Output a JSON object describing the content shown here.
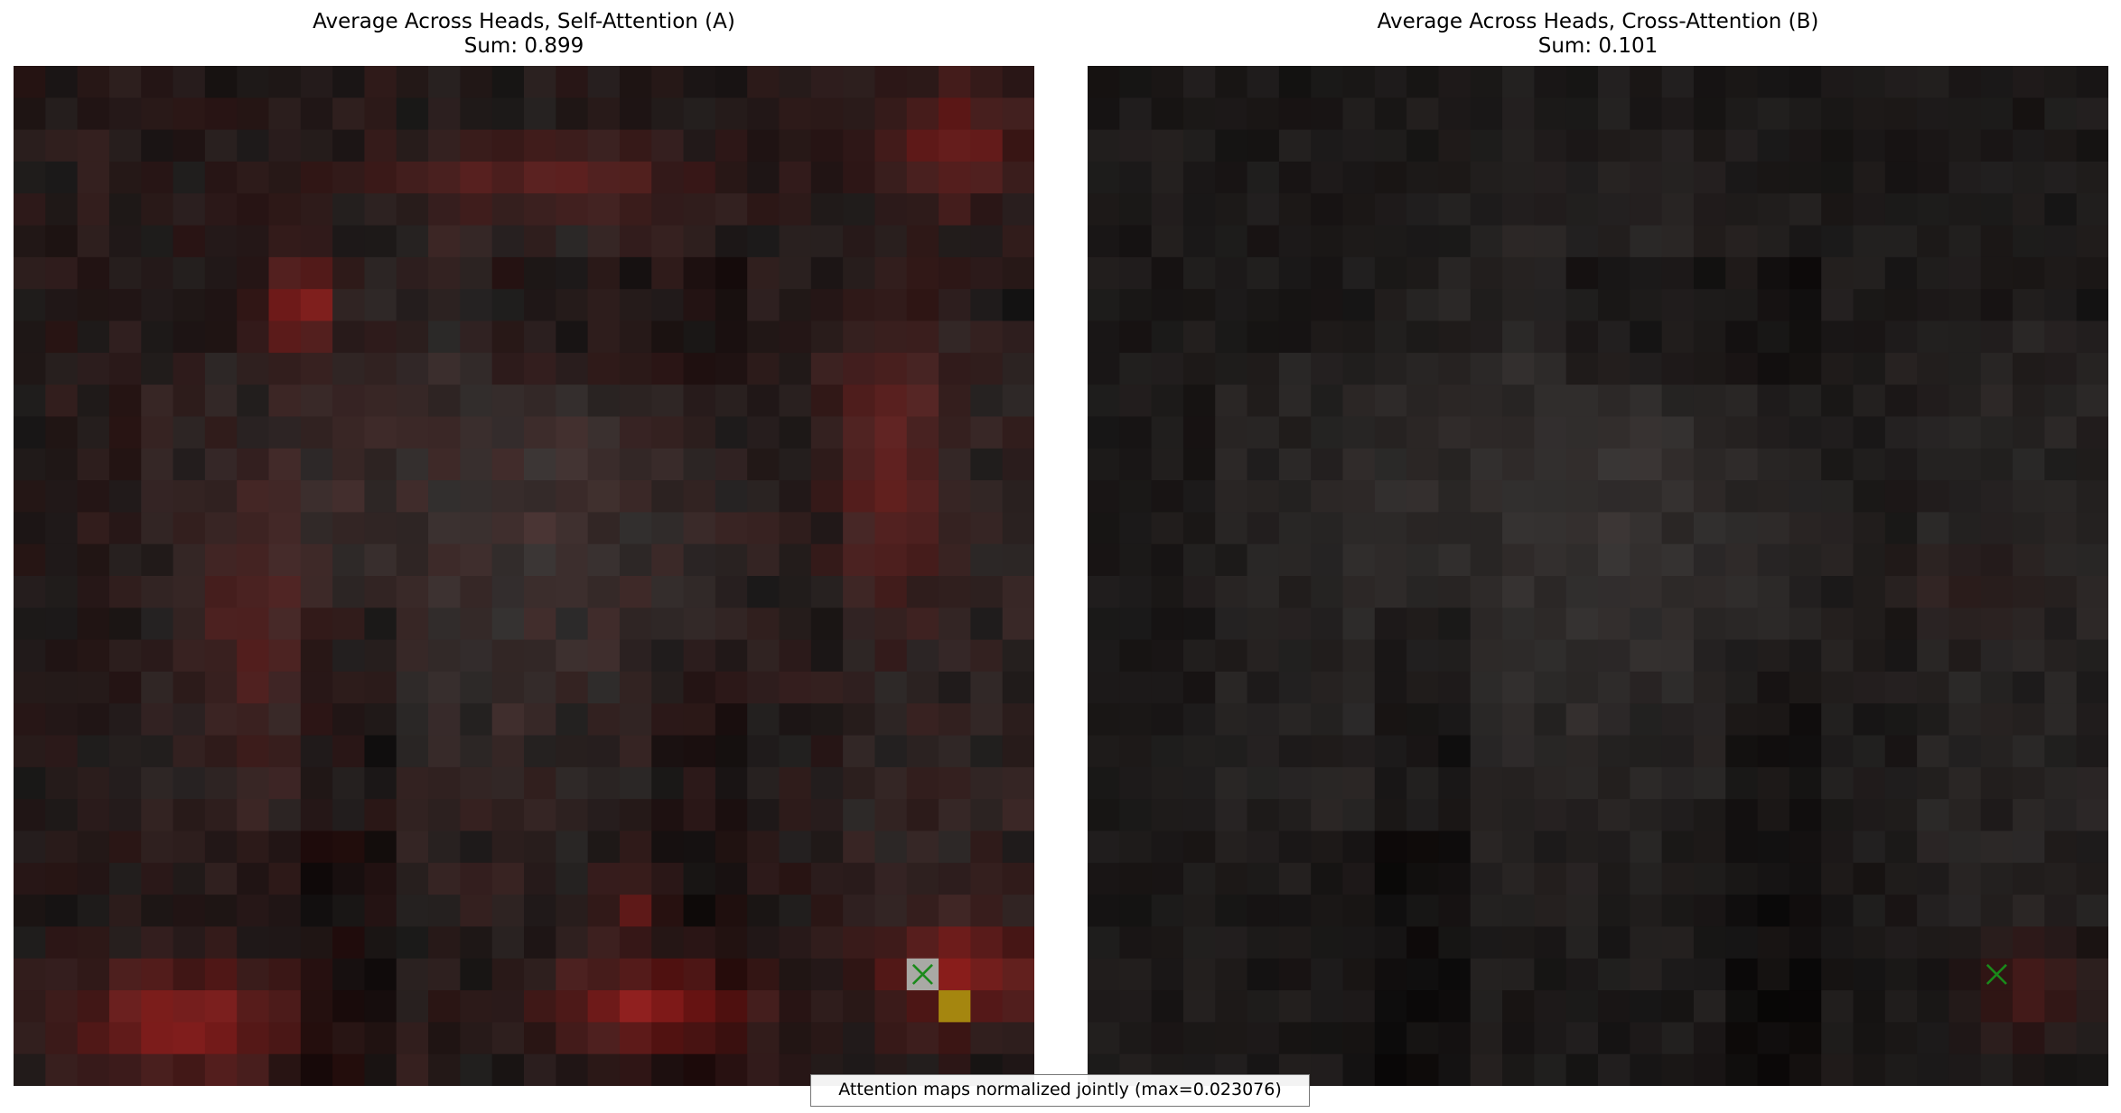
{
  "chart_data": [
    {
      "type": "heatmap",
      "title": "Average Across Heads, Self-Attention (A)",
      "subtitle": "Sum: 0.899",
      "grid": [
        32,
        32
      ],
      "marker": {
        "symbol": "x",
        "row": 28,
        "col": 28,
        "color": "#1a8a1a"
      },
      "highlight_cell": {
        "row": 29,
        "col": 29,
        "color": "#a5860f"
      },
      "hot_color": "#c8201e"
    },
    {
      "type": "heatmap",
      "title": "Average Across Heads, Cross-Attention (B)",
      "subtitle": "Sum: 0.101",
      "grid": [
        32,
        32
      ],
      "marker": {
        "symbol": "x",
        "row": 28,
        "col": 28,
        "color": "#1a8a1a"
      },
      "hot_color": "#7a1e1c"
    }
  ],
  "footer": {
    "note": "Attention maps normalized jointly (max=0.023076)"
  }
}
